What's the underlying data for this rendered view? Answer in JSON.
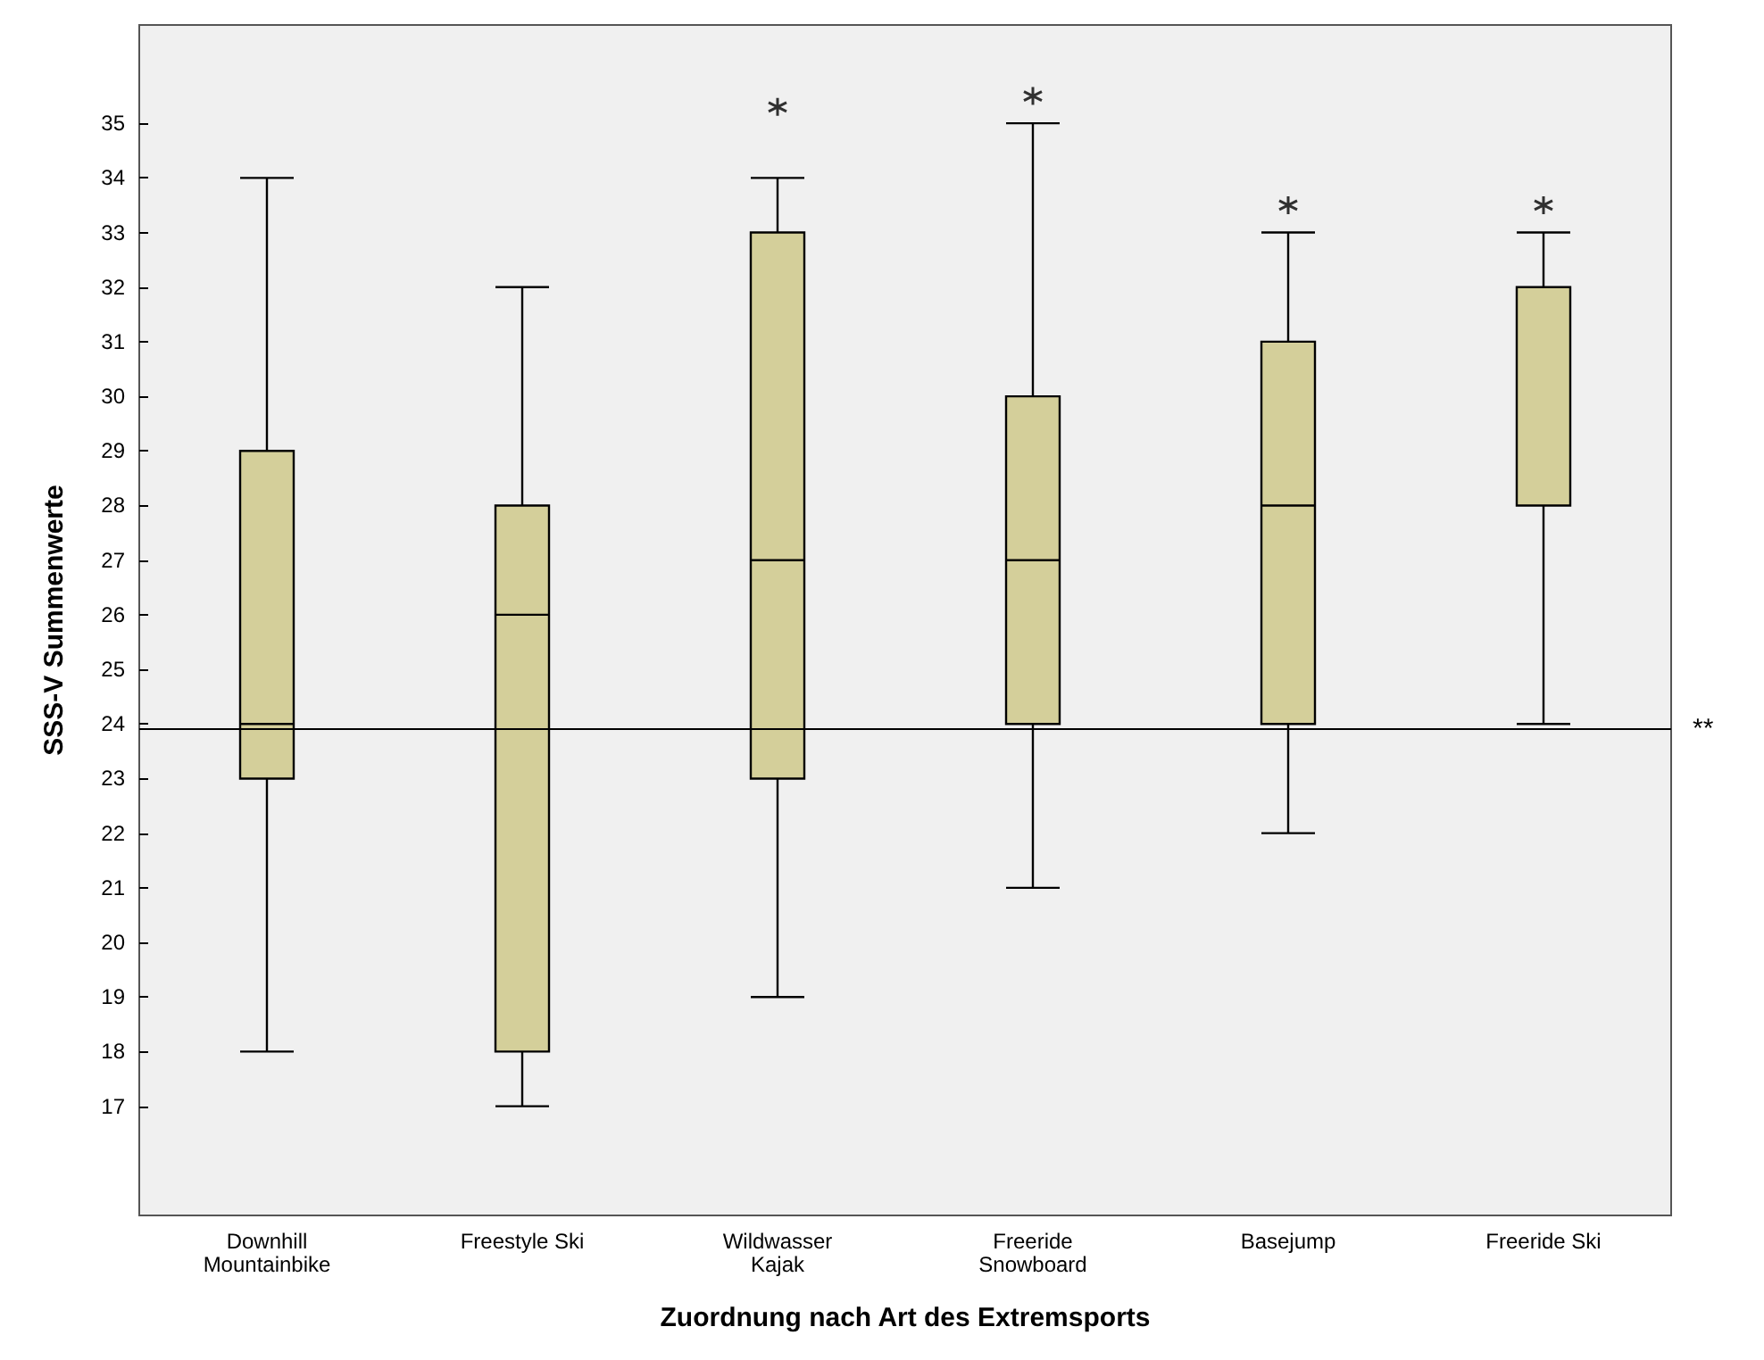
{
  "chart_data": {
    "type": "box",
    "xlabel": "Zuordnung nach Art des Extremsports",
    "ylabel": "SSS-V Summenwerte",
    "categories": [
      "Downhill\nMountainbike",
      "Freestyle Ski",
      "Wildwasser\nKajak",
      "Freeride\nSnowboard",
      "Basejump",
      "Freeride Ski"
    ],
    "boxes": [
      {
        "low": 18,
        "q1": 23,
        "median": 24,
        "q3": 29,
        "high": 34
      },
      {
        "low": 17,
        "q1": 18,
        "median": 26,
        "q3": 28,
        "high": 32
      },
      {
        "low": 19,
        "q1": 23,
        "median": 27,
        "q3": 33,
        "high": 34,
        "outliers": [
          35.3
        ]
      },
      {
        "low": 21,
        "q1": 24,
        "median": 27,
        "q3": 30,
        "high": 35,
        "outliers": [
          35.5
        ]
      },
      {
        "low": 22,
        "q1": 24,
        "median": 28,
        "q3": 31,
        "high": 33,
        "outliers": [
          33.5
        ]
      },
      {
        "low": 24,
        "q1": 28,
        "median": 32,
        "q3": 32,
        "high": 33,
        "outliers": [
          33.5
        ]
      }
    ],
    "color": "#d4cf9a",
    "ylim": [
      15,
      36.8
    ],
    "yticks": [
      17,
      18,
      19,
      20,
      21,
      22,
      23,
      24,
      25,
      26,
      27,
      28,
      29,
      30,
      31,
      32,
      33,
      34,
      35
    ],
    "grid": false,
    "ref_lines": [
      {
        "axis": "y",
        "value": 23.9,
        "label": "**"
      }
    ]
  }
}
